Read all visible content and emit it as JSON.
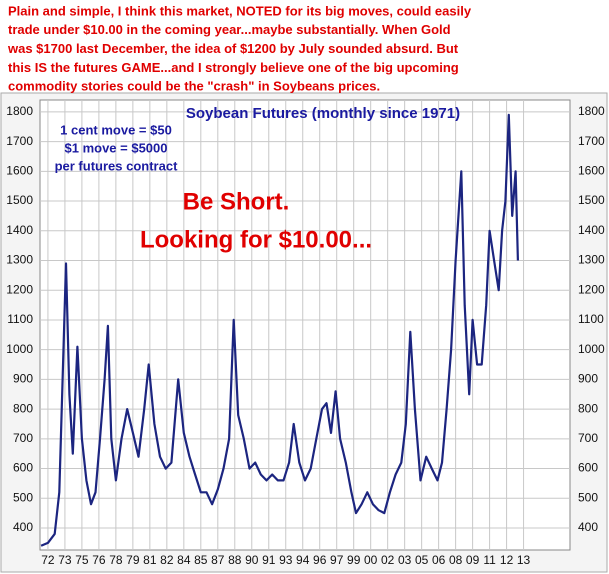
{
  "header": {
    "lines": [
      "Plain and simple, I think this market, NOTED for its big moves, could easily",
      "trade under $10.00 in the coming year...maybe substantially. When Gold",
      "was $1700 last December, the idea of $1200 by July sounded absurd. But",
      "this IS the futures GAME...and I strongly believe one of the big upcoming",
      "commodity stories could be the \"crash\" in Soybeans prices."
    ]
  },
  "chart_data": {
    "type": "line",
    "title": "Soybean Futures (monthly since 1971)",
    "notes": [
      "1 cent move = $50",
      "$1 move = $5000",
      "per futures contract"
    ],
    "callouts": [
      "Be Short.",
      "Looking for $10.00..."
    ],
    "color": "#1c2580",
    "grid": true,
    "x": [
      1971.4,
      1972.0,
      1972.6,
      1973.0,
      1973.3,
      1973.6,
      1973.9,
      1974.2,
      1974.6,
      1975.0,
      1975.4,
      1975.8,
      1976.2,
      1976.6,
      1977.0,
      1977.3,
      1977.6,
      1978.0,
      1978.5,
      1979.0,
      1979.5,
      1980.0,
      1980.5,
      1980.9,
      1981.4,
      1981.9,
      1982.4,
      1982.9,
      1983.5,
      1984.0,
      1984.5,
      1985.0,
      1985.5,
      1986.0,
      1986.5,
      1987.0,
      1987.5,
      1988.0,
      1988.4,
      1988.8,
      1989.3,
      1989.8,
      1990.3,
      1990.8,
      1991.3,
      1991.8,
      1992.3,
      1992.8,
      1993.3,
      1993.7,
      1994.2,
      1994.7,
      1995.2,
      1995.7,
      1996.2,
      1996.6,
      1997.0,
      1997.4,
      1997.8,
      1998.3,
      1998.8,
      1999.2,
      1999.7,
      2000.2,
      2000.7,
      2001.2,
      2001.7,
      2002.2,
      2002.7,
      2003.2,
      2003.6,
      2004.0,
      2004.4,
      2004.9,
      2005.4,
      2005.9,
      2006.4,
      2006.8,
      2007.2,
      2007.6,
      2008.0,
      2008.5,
      2008.8,
      2009.2,
      2009.5,
      2009.9,
      2010.3,
      2010.7,
      2011.0,
      2011.4,
      2011.8,
      2012.1,
      2012.4,
      2012.7,
      2013.0,
      2013.3,
      2013.5
    ],
    "values": [
      340,
      350,
      380,
      520,
      900,
      1290,
      850,
      650,
      1010,
      700,
      560,
      480,
      520,
      700,
      900,
      1080,
      700,
      560,
      700,
      800,
      720,
      640,
      800,
      950,
      750,
      640,
      600,
      620,
      900,
      720,
      640,
      580,
      520,
      520,
      480,
      530,
      600,
      700,
      1100,
      780,
      700,
      600,
      620,
      580,
      560,
      580,
      560,
      560,
      620,
      750,
      620,
      560,
      600,
      700,
      800,
      820,
      720,
      860,
      700,
      620,
      520,
      450,
      480,
      520,
      480,
      460,
      450,
      520,
      580,
      620,
      750,
      1060,
      800,
      560,
      640,
      600,
      560,
      620,
      800,
      1000,
      1300,
      1600,
      1150,
      850,
      1100,
      950,
      950,
      1150,
      1400,
      1300,
      1200,
      1400,
      1500,
      1790,
      1450,
      1600,
      1300
    ],
    "xlim": [
      1971.3,
      2018.1
    ],
    "xticks": [
      {
        "value": 1972,
        "label": "72"
      },
      {
        "value": 1973.5,
        "label": "73"
      },
      {
        "value": 1975,
        "label": "75"
      },
      {
        "value": 1976.5,
        "label": "76"
      },
      {
        "value": 1978,
        "label": "78"
      },
      {
        "value": 1979.5,
        "label": "79"
      },
      {
        "value": 1981,
        "label": "81"
      },
      {
        "value": 1982.5,
        "label": "82"
      },
      {
        "value": 1984,
        "label": "84"
      },
      {
        "value": 1985.5,
        "label": "85"
      },
      {
        "value": 1987,
        "label": "87"
      },
      {
        "value": 1988.5,
        "label": "88"
      },
      {
        "value": 1990,
        "label": "90"
      },
      {
        "value": 1991.5,
        "label": "91"
      },
      {
        "value": 1993,
        "label": "93"
      },
      {
        "value": 1994.5,
        "label": "94"
      },
      {
        "value": 1996,
        "label": "96"
      },
      {
        "value": 1997.5,
        "label": "97"
      },
      {
        "value": 1999,
        "label": "99"
      },
      {
        "value": 2000.5,
        "label": "00"
      },
      {
        "value": 2002,
        "label": "02"
      },
      {
        "value": 2003.5,
        "label": "03"
      },
      {
        "value": 2005,
        "label": "05"
      },
      {
        "value": 2006.5,
        "label": "06"
      },
      {
        "value": 2008,
        "label": "08"
      },
      {
        "value": 2009.5,
        "label": "09"
      },
      {
        "value": 2011,
        "label": "11"
      },
      {
        "value": 2012.5,
        "label": "12"
      },
      {
        "value": 2014,
        "label": "13"
      }
    ],
    "ylim": [
      326,
      1840
    ],
    "yticks": [
      400,
      500,
      600,
      700,
      800,
      900,
      1000,
      1100,
      1200,
      1300,
      1400,
      1500,
      1600,
      1700,
      1800
    ]
  }
}
